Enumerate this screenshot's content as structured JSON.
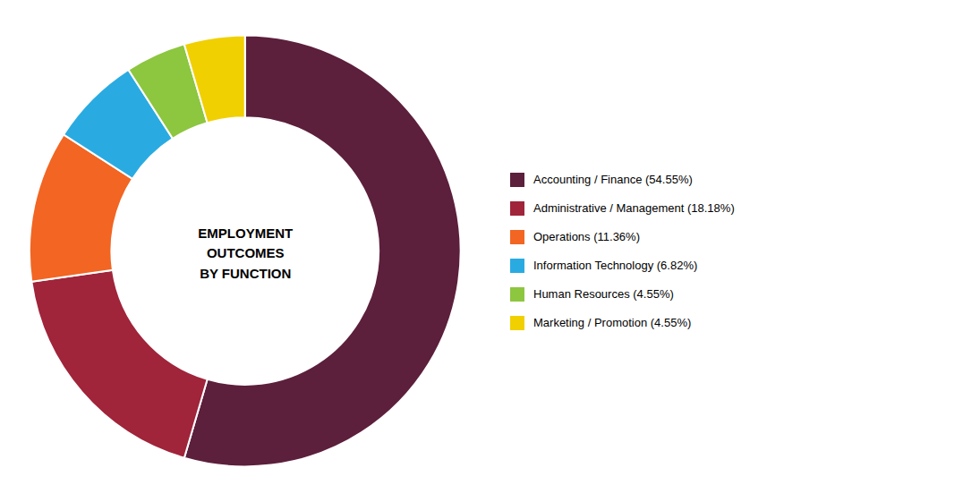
{
  "chart_data": {
    "type": "pie",
    "title": "EMPLOYMENT\nOUTCOMES\nBY FUNCTION",
    "categories": [
      "Accounting / Finance (54.55%)",
      "Administrative / Management (18.18%)",
      "Operations (11.36%)",
      "Information Technology (6.82%)",
      "Human Resources (4.55%)",
      "Marketing / Promotion (4.55%)"
    ],
    "values": [
      54.55,
      18.18,
      11.36,
      6.82,
      4.55,
      4.55
    ],
    "colors": [
      "#5c1f3c",
      "#a0243a",
      "#f26522",
      "#29abe2",
      "#8dc63f",
      "#f0d000"
    ],
    "legend": "right"
  }
}
